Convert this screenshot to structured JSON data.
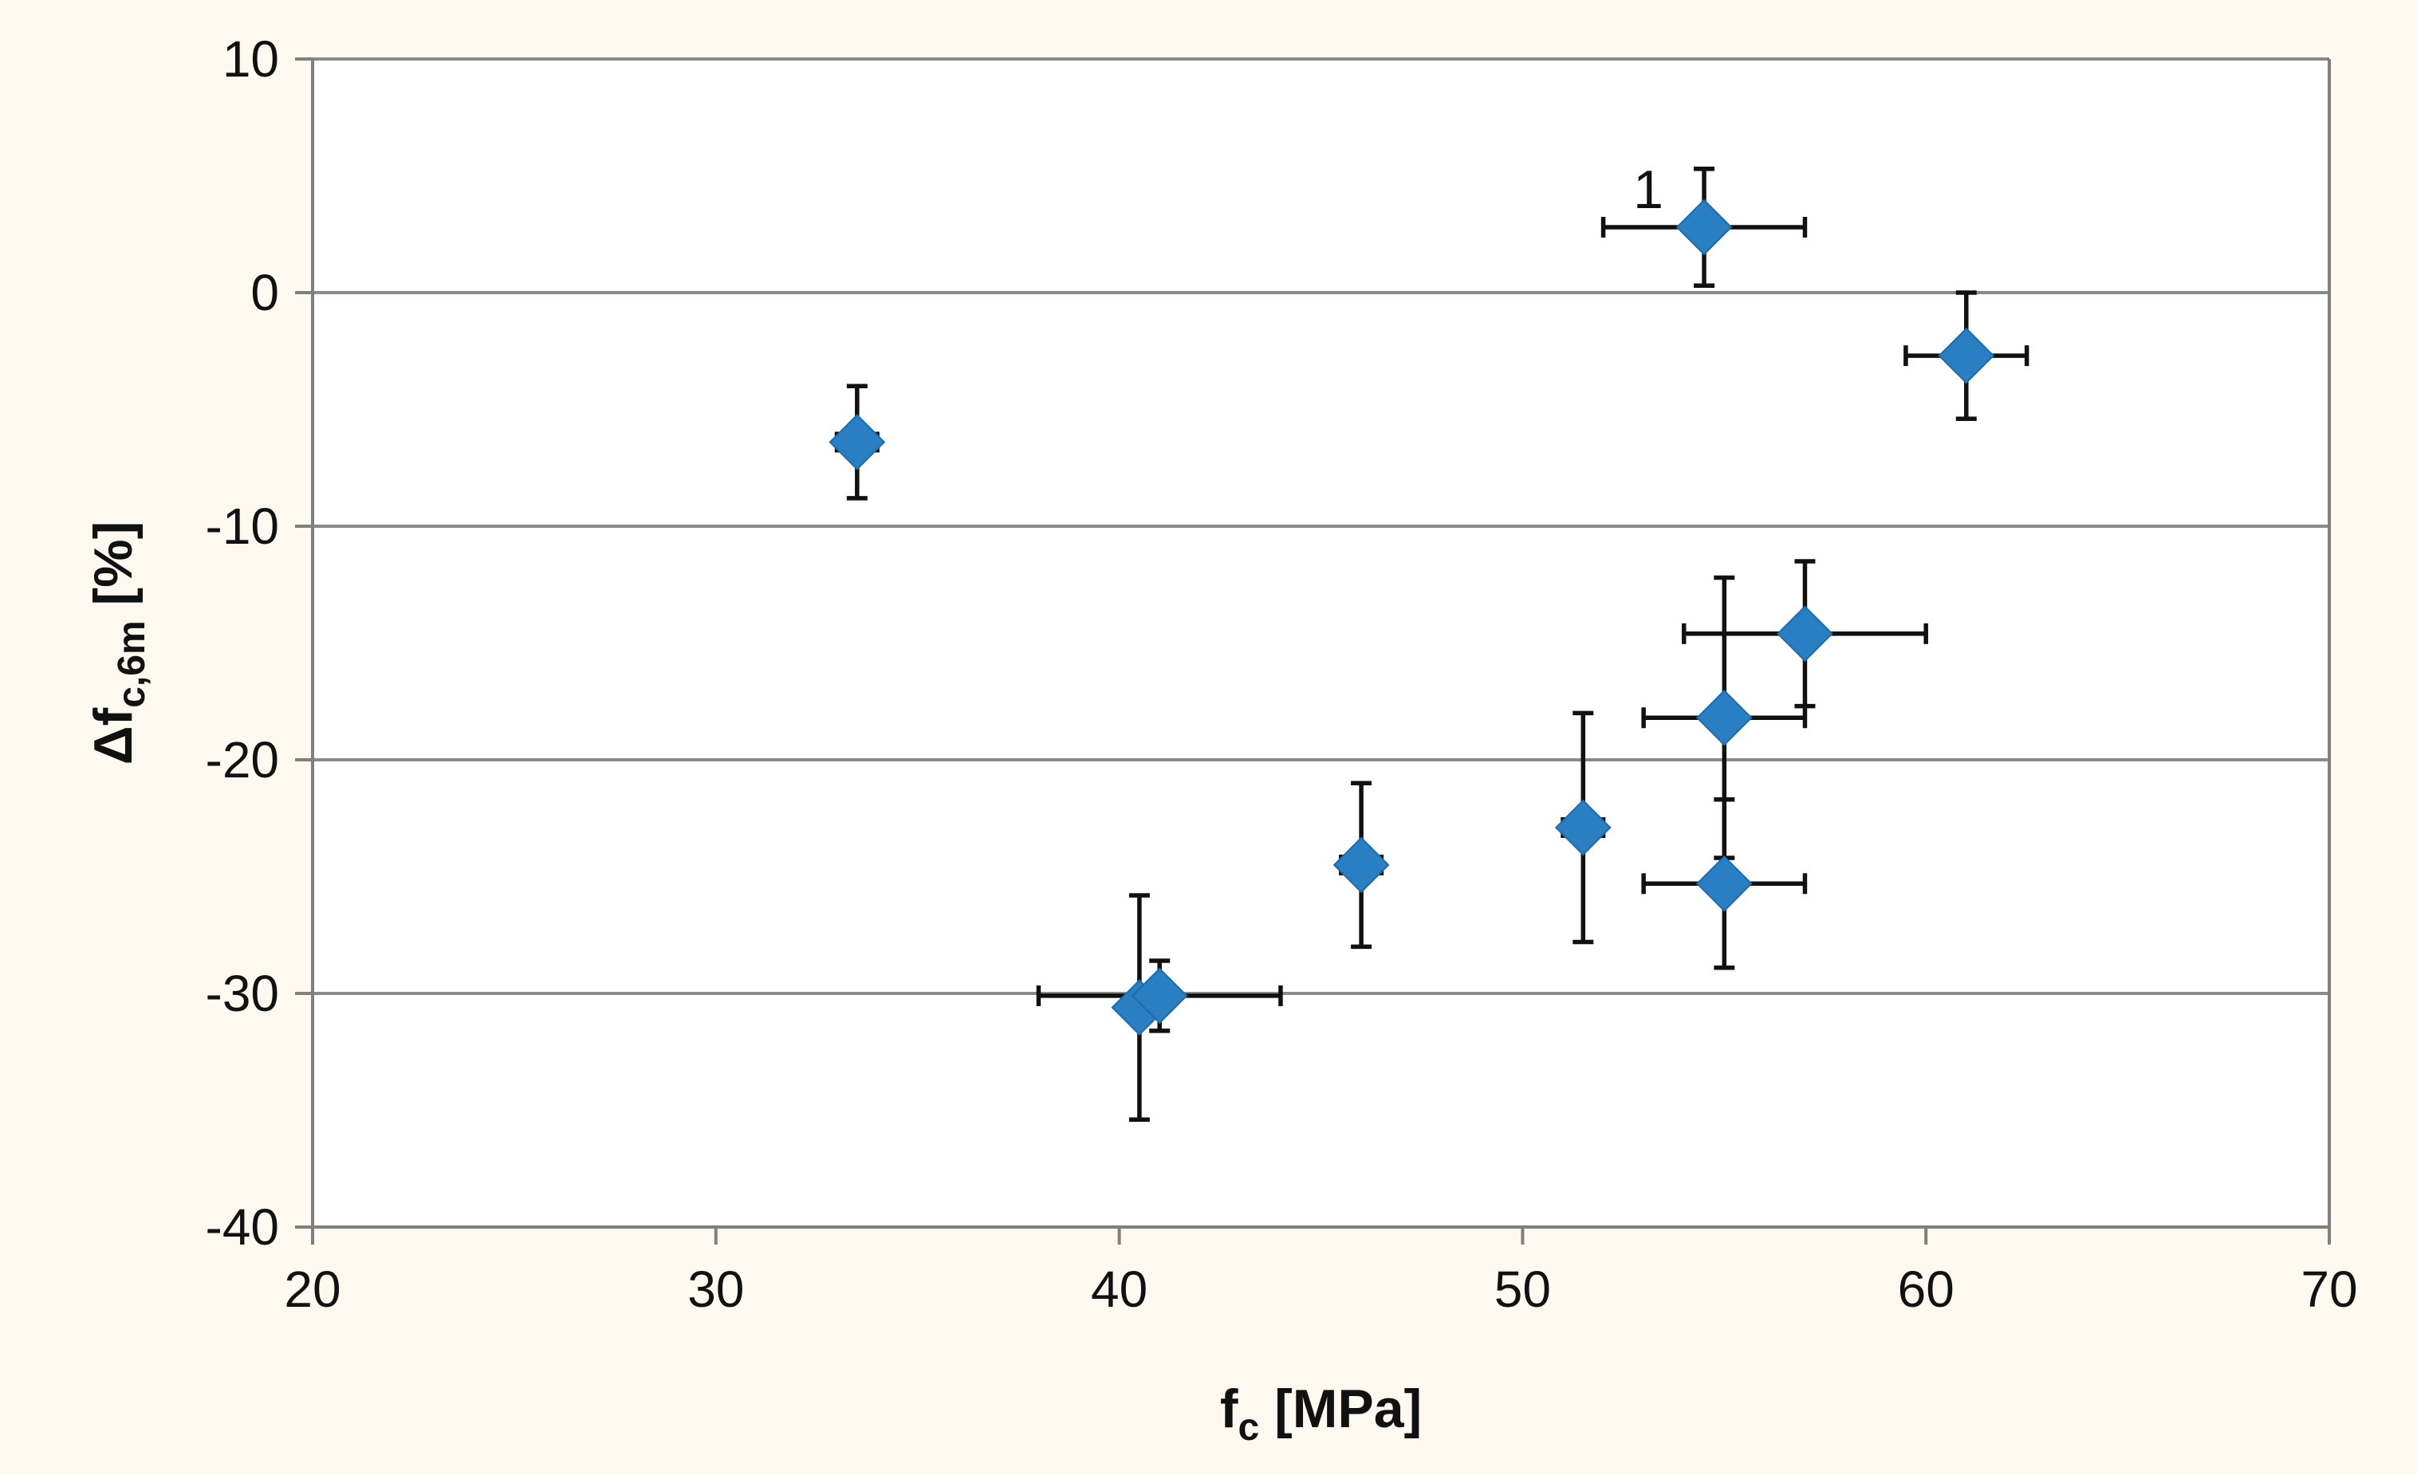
{
  "colors": {
    "page_background": "#fdf9f1",
    "plot_background": "#ffffff",
    "marker": "#2a7fc3",
    "marker_edge": "#1f6aa8",
    "error_bar": "#111111",
    "gridline": "#8a8a8a",
    "axis": "#7f7f7f",
    "text": "#111111"
  },
  "chart_data": {
    "type": "scatter",
    "title": "",
    "xlabel": "f",
    "xlabel_sub": "c",
    "xlabel_unit": " [MPa]",
    "ylabel": "Δf",
    "ylabel_sub": "c,6m",
    "ylabel_unit": " [%]",
    "xlim": [
      20,
      70
    ],
    "ylim": [
      -40,
      10
    ],
    "x_ticks": [
      20,
      30,
      40,
      50,
      60,
      70
    ],
    "x_tick_labels": [
      "20",
      "30",
      "40",
      "50",
      "60",
      "70"
    ],
    "y_ticks": [
      -40,
      -30,
      -20,
      -10,
      0,
      10
    ],
    "y_tick_labels": [
      "-40",
      "-30",
      "-20",
      "-10",
      "0",
      "10"
    ],
    "grid": "horizontal",
    "legend": "none",
    "marker": "diamond",
    "series": [
      {
        "name": "Δfc,6m",
        "points": [
          {
            "x": 33.5,
            "y": -6.4,
            "y_err": [
              2.4,
              2.4
            ],
            "x_err": [
              0.5,
              0.5
            ]
          },
          {
            "x": 40.5,
            "y": -30.6,
            "y_err": [
              4.8,
              4.8
            ],
            "x_err": [
              0.4,
              0.4
            ]
          },
          {
            "x": 41.0,
            "y": -30.1,
            "y_err": [
              1.5,
              1.5
            ],
            "x_err": [
              3.0,
              3.0
            ]
          },
          {
            "x": 46.0,
            "y": -24.5,
            "y_err": [
              3.5,
              3.5
            ],
            "x_err": [
              0.5,
              0.5
            ]
          },
          {
            "x": 51.5,
            "y": -22.9,
            "y_err": [
              4.9,
              4.9
            ],
            "x_err": [
              0.5,
              0.5
            ]
          },
          {
            "x": 54.5,
            "y": 2.8,
            "y_err": [
              2.5,
              2.5
            ],
            "x_err": [
              2.5,
              2.5
            ],
            "label": "1"
          },
          {
            "x": 55.0,
            "y": -18.2,
            "y_err": [
              6.0,
              6.0
            ],
            "x_err": [
              2.0,
              2.0
            ]
          },
          {
            "x": 55.0,
            "y": -25.3,
            "y_err": [
              3.6,
              3.6
            ],
            "x_err": [
              2.0,
              2.0
            ]
          },
          {
            "x": 57.0,
            "y": -14.6,
            "y_err": [
              3.1,
              3.1
            ],
            "x_err": [
              3.0,
              3.0
            ]
          },
          {
            "x": 61.0,
            "y": -2.7,
            "y_err": [
              2.7,
              2.7
            ],
            "x_err": [
              1.5,
              1.5
            ]
          }
        ]
      }
    ]
  }
}
